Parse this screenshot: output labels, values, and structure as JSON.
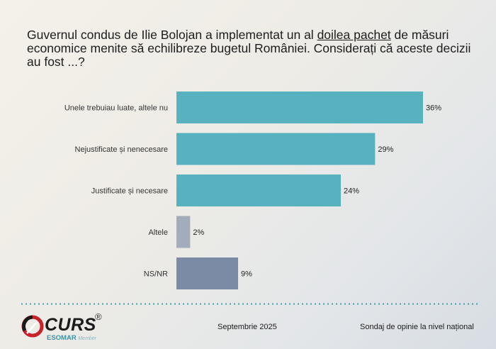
{
  "title_parts": {
    "before": "Guvernul condus de Ilie Bolojan a implementat un al ",
    "underlined": "doilea pachet",
    "after": " de măsuri economice menite să echilibreze bugetul României. Considerați că aceste decizii au fost ...?"
  },
  "chart_data": {
    "type": "bar",
    "orientation": "horizontal",
    "categories": [
      "Unele trebuiau luate, altele nu",
      "Nejustificate și nenecesare",
      "Justificate și necesare",
      "Altele",
      "NS/NR"
    ],
    "values": [
      36,
      29,
      24,
      2,
      9
    ],
    "value_labels": [
      "36%",
      "29%",
      "24%",
      "2%",
      "9%"
    ],
    "colors": [
      "#58b1be",
      "#58b1be",
      "#58b1be",
      "#a2acba",
      "#7b8aa5"
    ],
    "xlim": [
      0,
      36
    ],
    "grid": false,
    "legend": "none",
    "title": "",
    "xlabel": "",
    "ylabel": ""
  },
  "footer": {
    "date": "Septembrie 2025",
    "source": "Sondaj de opinie la nivel național"
  },
  "logo": {
    "name": "CURS",
    "reg": "®",
    "org": "ESOMAR",
    "member": "Member"
  }
}
